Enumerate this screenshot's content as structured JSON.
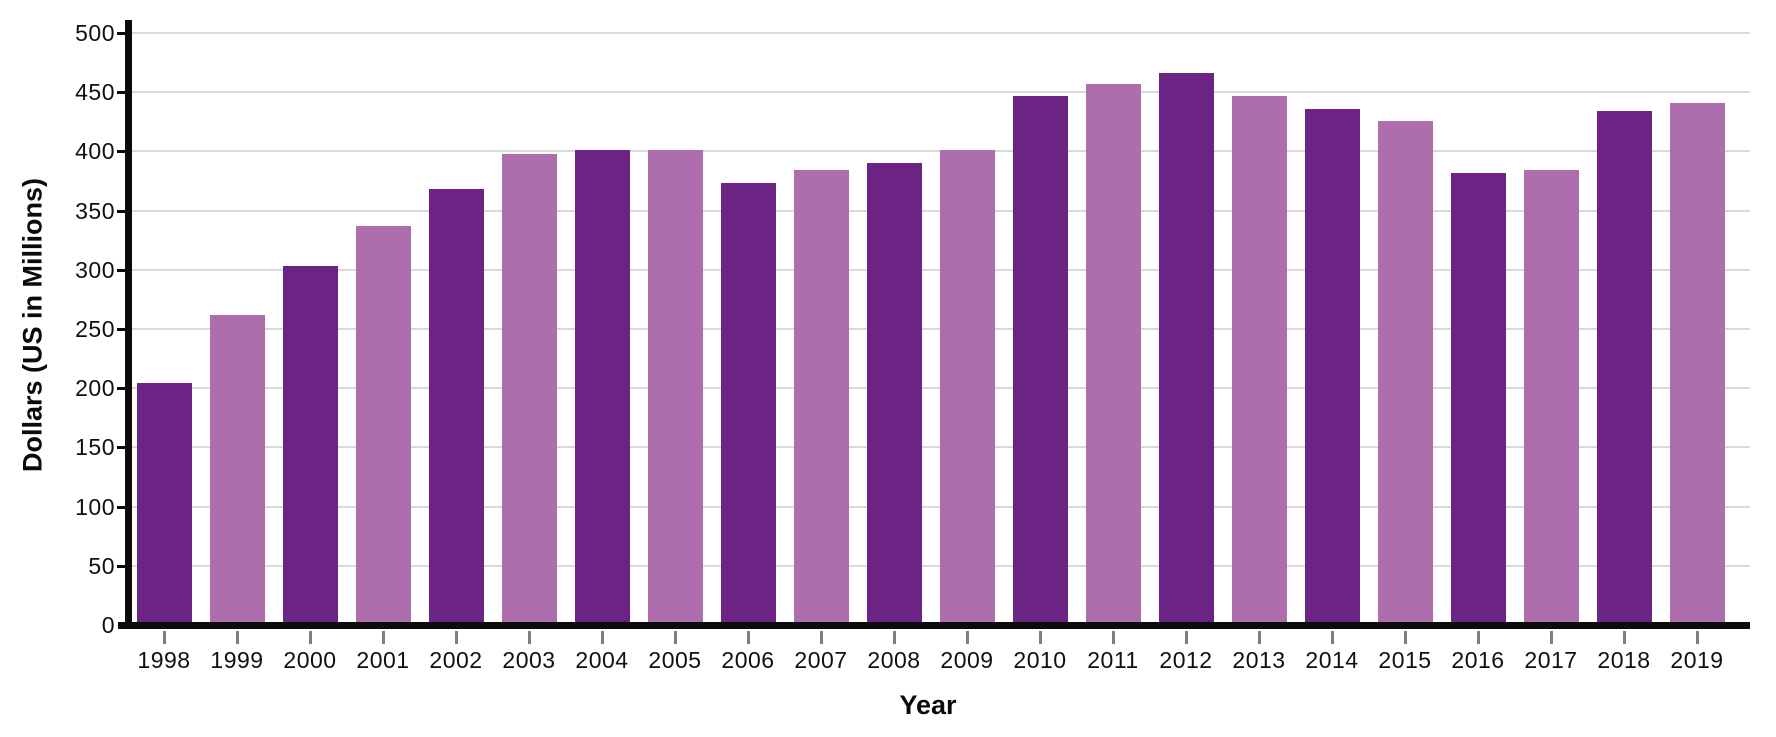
{
  "chart_data": {
    "type": "bar",
    "title": "",
    "xlabel": "Year",
    "ylabel": "Dollars (US in Millions)",
    "categories": [
      "1998",
      "1999",
      "2000",
      "2001",
      "2002",
      "2003",
      "2004",
      "2005",
      "2006",
      "2007",
      "2008",
      "2009",
      "2010",
      "2011",
      "2012",
      "2013",
      "2014",
      "2015",
      "2016",
      "2017",
      "2018",
      "2019"
    ],
    "values": [
      204,
      262,
      303,
      337,
      368,
      398,
      401,
      401,
      373,
      384,
      390,
      401,
      447,
      457,
      466,
      447,
      436,
      426,
      382,
      384,
      434,
      441
    ],
    "ylim": [
      0,
      500
    ],
    "yticks": [
      0,
      50,
      100,
      150,
      200,
      250,
      300,
      350,
      400,
      450,
      500
    ],
    "grid": "horizontal gray lines, on",
    "legend": "none",
    "bar_color_pattern": "alternating",
    "colors": {
      "bar_dark": "#6B2484",
      "bar_light": "#AE6DAC",
      "gridline": "#D9D9D9",
      "axis": "#0B0B0B",
      "x_tick": "#7E7E7E",
      "text": "#101010"
    }
  }
}
